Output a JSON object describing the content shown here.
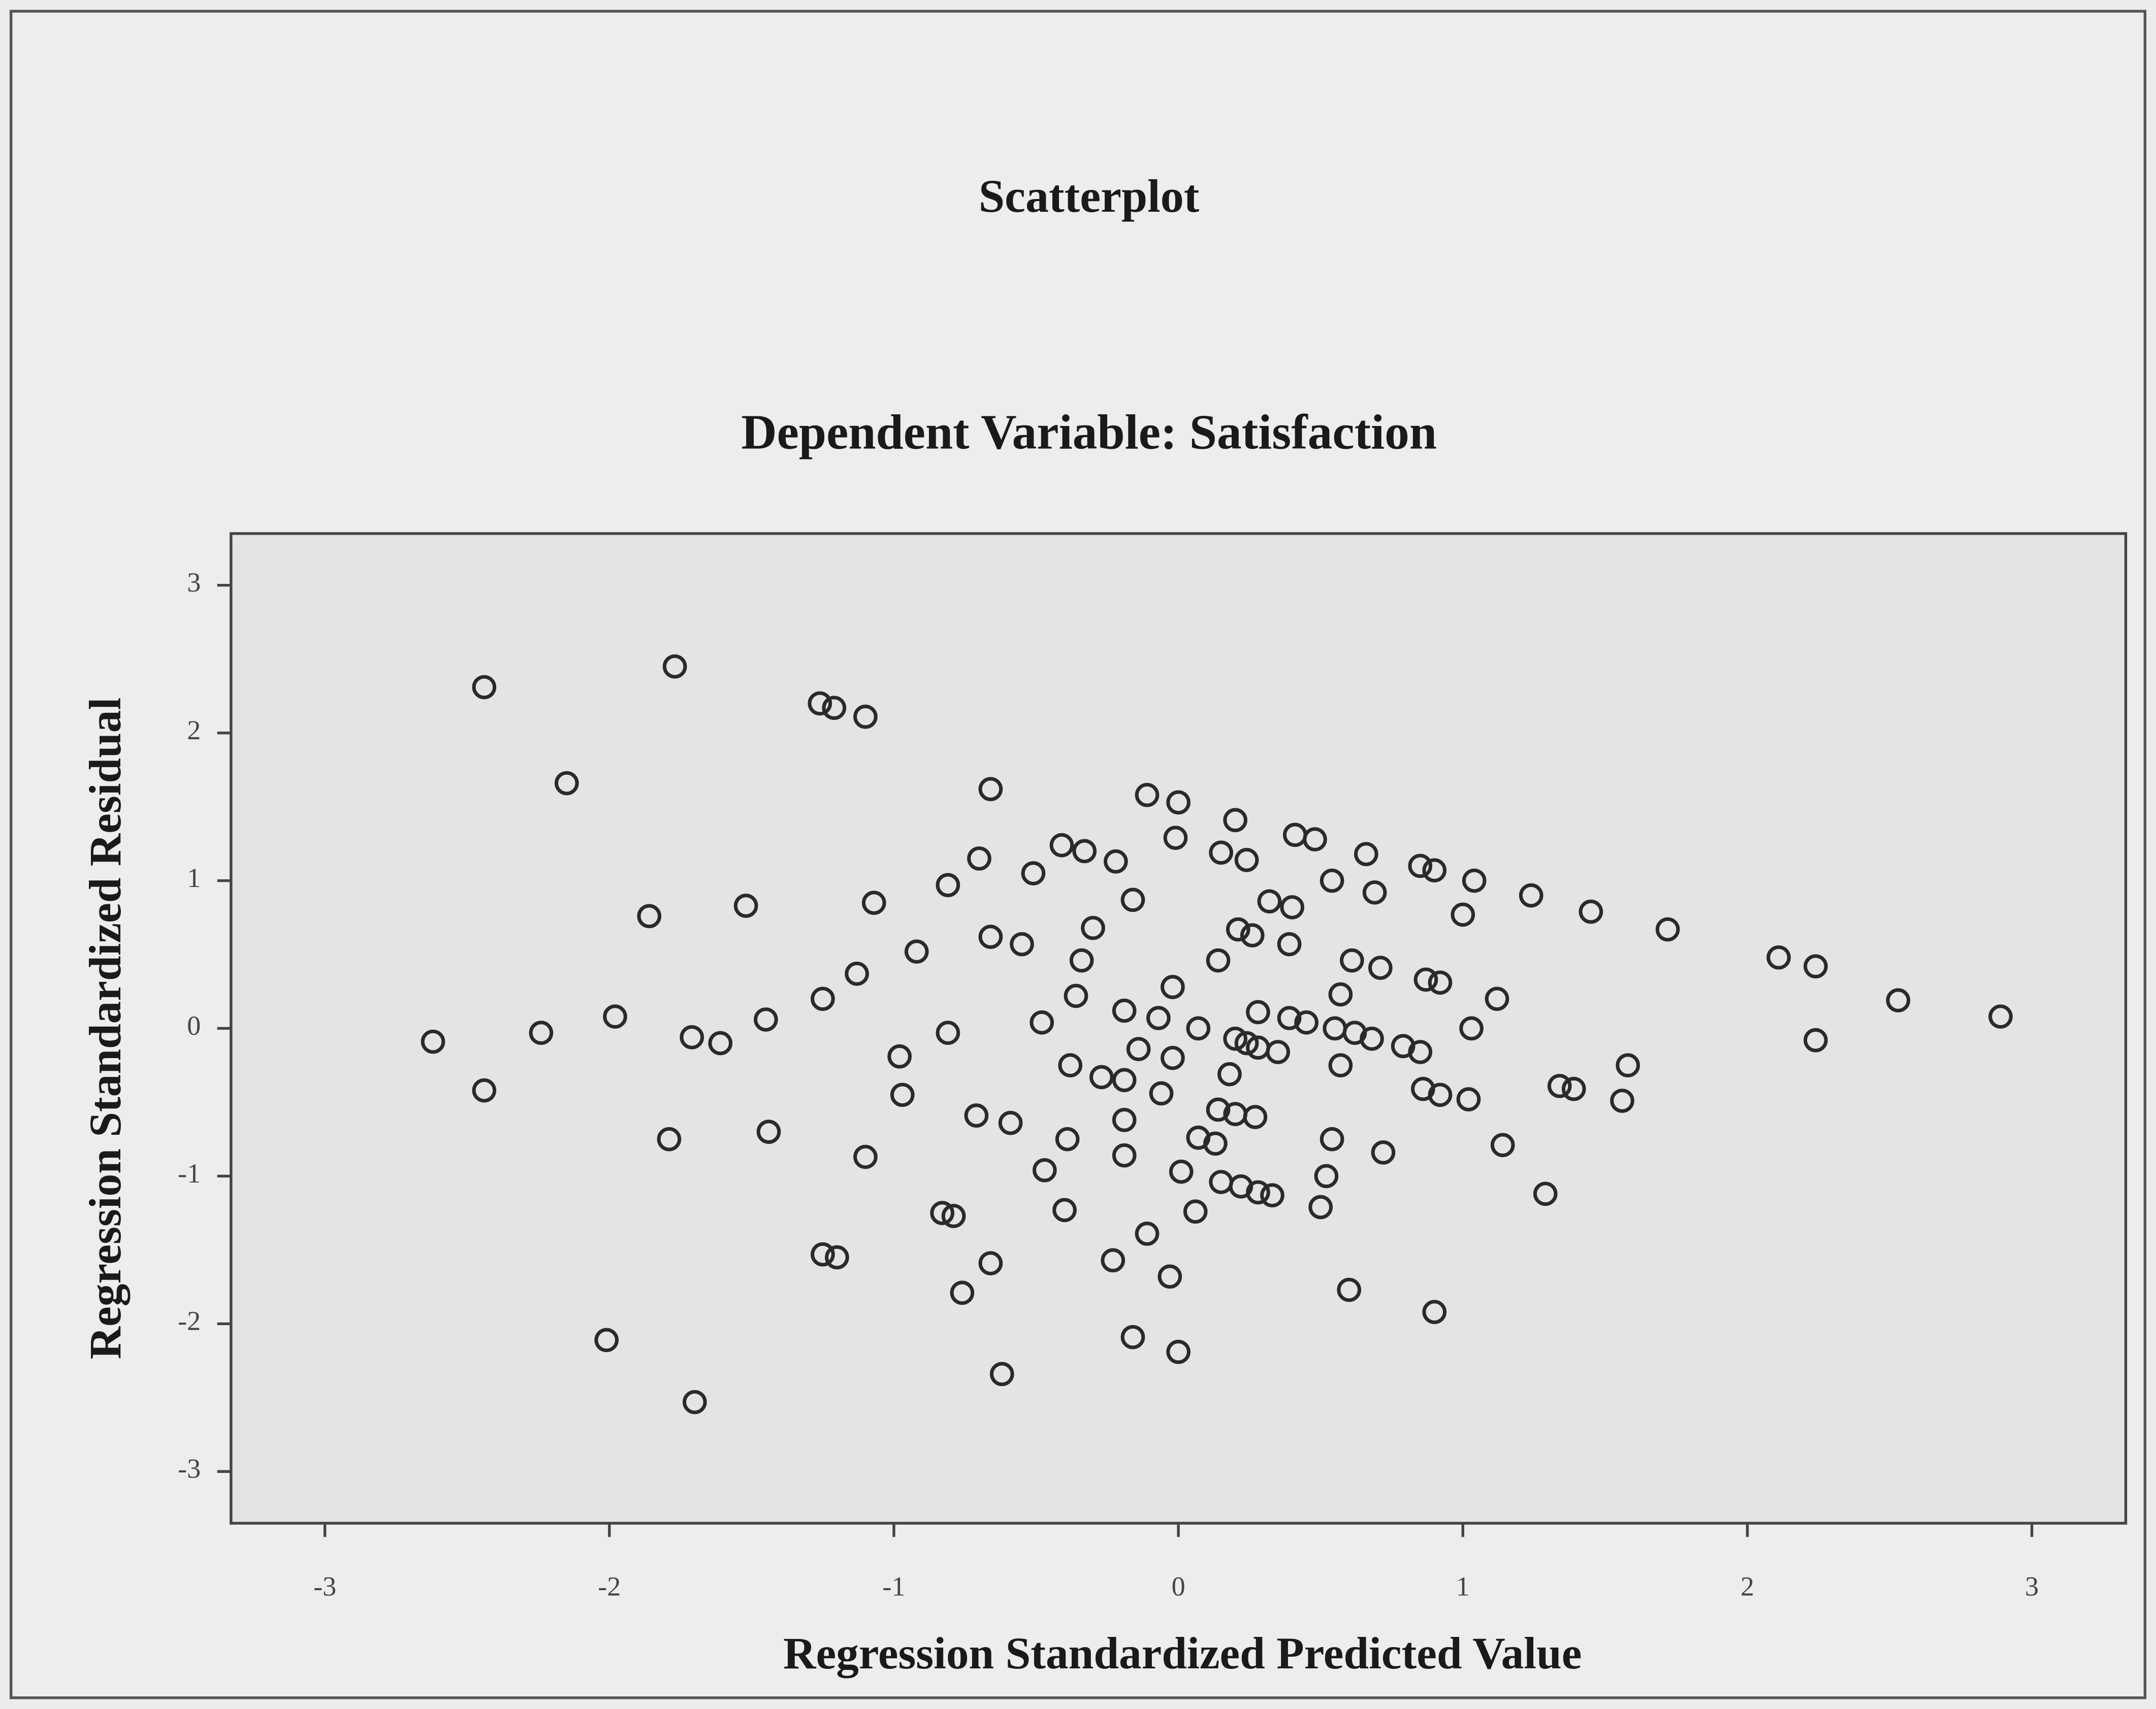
{
  "chart_data": {
    "type": "scatter",
    "title": "Scatterplot",
    "subtitle": "Dependent Variable: Satisfaction",
    "x_label": "Regression Standardized Predicted Value",
    "y_label": "Regression Standardized Residual",
    "color": "#2a2a2a",
    "xlim": [
      -3.33,
      3.33
    ],
    "ylim": [
      -3.35,
      3.35
    ],
    "xticks": [
      -3,
      -2,
      -1,
      0,
      1,
      2,
      3
    ],
    "yticks": [
      -3,
      -2,
      -1,
      0,
      1,
      2,
      3
    ],
    "x": [
      -2.44,
      -1.77,
      -1.26,
      -1.21,
      -1.1,
      -2.15,
      -0.66,
      -0.11,
      0,
      0.2,
      -0.01,
      0.41,
      0.48,
      -0.41,
      -0.33,
      -0.7,
      -0.22,
      0.15,
      0.24,
      0.66,
      -0.51,
      0.85,
      0.9,
      1.04,
      0.54,
      -0.81,
      0.69,
      1.24,
      -0.16,
      0.32,
      0.4,
      -1.07,
      -1.52,
      -1.86,
      1.0,
      1.45,
      -0.3,
      0.21,
      0.26,
      1.72,
      -0.66,
      -0.55,
      0.39,
      -0.92,
      2.11,
      2.24,
      0.14,
      -0.34,
      0.61,
      0.71,
      -1.13,
      0.87,
      0.92,
      -0.02,
      1.12,
      0.57,
      -0.36,
      -1.25,
      2.53,
      2.89,
      -1.98,
      -1.45,
      -0.19,
      -0.07,
      0.28,
      0.39,
      0.45,
      -0.48,
      0.07,
      0.55,
      0.62,
      0.68,
      1.03,
      -2.24,
      -2.62,
      -1.71,
      -1.61,
      -0.81,
      0.2,
      0.24,
      0.28,
      0.35,
      0.79,
      0.85,
      2.24,
      -0.14,
      -0.02,
      -0.98,
      -0.38,
      0.57,
      1.58,
      0.18,
      -0.27,
      -0.19,
      1.34,
      1.39,
      -2.44,
      0.86,
      0.92,
      1.02,
      1.56,
      -0.97,
      -0.06,
      0.14,
      0.2,
      0.27,
      -0.71,
      -0.59,
      -0.19,
      -1.44,
      0.07,
      0.13,
      -1.79,
      -0.39,
      0.54,
      1.14,
      0.72,
      -1.1,
      -0.19,
      -0.47,
      0.01,
      0.52,
      0.15,
      0.22,
      0.28,
      0.33,
      1.29,
      0.5,
      -0.4,
      0.06,
      -0.83,
      -0.79,
      -0.11,
      -1.25,
      -1.2,
      -0.23,
      -0.66,
      -0.03,
      -0.76,
      0.6,
      0.9,
      -2.01,
      -0.16,
      0,
      -0.62,
      -1.7
    ],
    "values": [
      2.31,
      2.45,
      2.2,
      2.17,
      2.11,
      1.66,
      1.62,
      1.58,
      1.53,
      1.41,
      1.29,
      1.31,
      1.28,
      1.24,
      1.2,
      1.15,
      1.13,
      1.19,
      1.14,
      1.18,
      1.05,
      1.1,
      1.07,
      1.0,
      1.0,
      0.97,
      0.92,
      0.9,
      0.87,
      0.86,
      0.82,
      0.85,
      0.83,
      0.76,
      0.77,
      0.79,
      0.68,
      0.67,
      0.63,
      0.67,
      0.62,
      0.57,
      0.57,
      0.52,
      0.48,
      0.42,
      0.46,
      0.46,
      0.46,
      0.41,
      0.37,
      0.33,
      0.31,
      0.28,
      0.2,
      0.23,
      0.22,
      0.2,
      0.19,
      0.08,
      0.08,
      0.06,
      0.12,
      0.07,
      0.11,
      0.07,
      0.04,
      0.04,
      0,
      0,
      -0.03,
      -0.07,
      0,
      -0.03,
      -0.09,
      -0.06,
      -0.1,
      -0.03,
      -0.07,
      -0.1,
      -0.13,
      -0.16,
      -0.12,
      -0.16,
      -0.08,
      -0.14,
      -0.2,
      -0.19,
      -0.25,
      -0.25,
      -0.25,
      -0.31,
      -0.33,
      -0.35,
      -0.39,
      -0.41,
      -0.42,
      -0.41,
      -0.45,
      -0.48,
      -0.49,
      -0.45,
      -0.44,
      -0.55,
      -0.58,
      -0.6,
      -0.59,
      -0.64,
      -0.62,
      -0.7,
      -0.74,
      -0.78,
      -0.75,
      -0.75,
      -0.75,
      -0.79,
      -0.84,
      -0.87,
      -0.86,
      -0.96,
      -0.97,
      -1.0,
      -1.04,
      -1.07,
      -1.11,
      -1.13,
      -1.12,
      -1.21,
      -1.23,
      -1.24,
      -1.25,
      -1.27,
      -1.39,
      -1.53,
      -1.55,
      -1.57,
      -1.59,
      -1.68,
      -1.79,
      -1.77,
      -1.92,
      -2.11,
      -2.09,
      -2.19,
      -2.34,
      -2.53
    ]
  }
}
